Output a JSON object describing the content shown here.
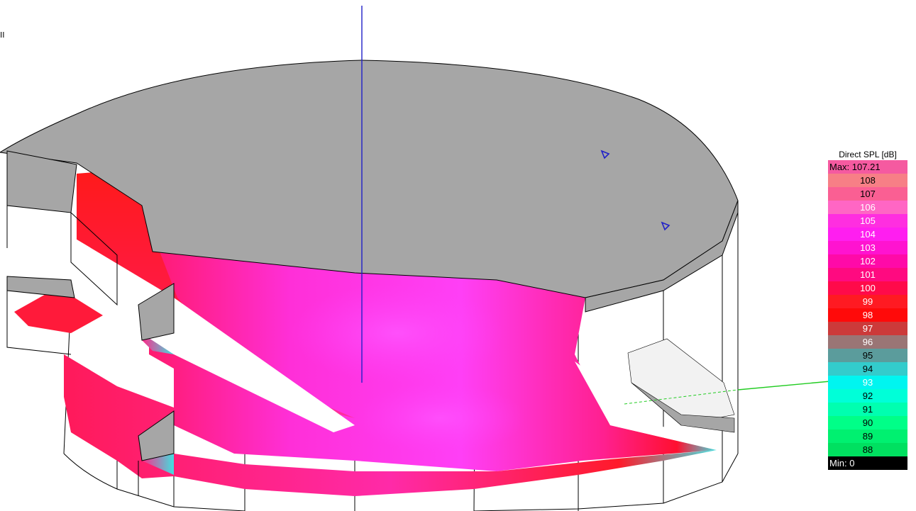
{
  "viewport": {
    "corner_marker": "II"
  },
  "scene": {
    "object": "cylindrical venue model with stepped balcony tiers",
    "axes": {
      "vertical_axis_color": "#2020c8",
      "horizontal_axis_color": "#22cc22"
    },
    "surface_colors": {
      "roof": "#a6a6a6",
      "wall_outline": "#000000",
      "audience_area_peak": "#ff2ff0",
      "audience_area_mid": "#ff1f7a",
      "audience_area_low": "#2fd6d6"
    },
    "source_icons": [
      "speaker-icon",
      "speaker-icon"
    ]
  },
  "legend": {
    "title": "Direct SPL [dB]",
    "max_label": "Max:",
    "max_value": "107.21",
    "min_label": "Min:",
    "min_value": "0",
    "levels": [
      {
        "label": "108",
        "color": "#f77f86",
        "text": "#000000"
      },
      {
        "label": "107",
        "color": "#fa5f93",
        "text": "#000000"
      },
      {
        "label": "106",
        "color": "#ff66c4",
        "text": "#ffffff"
      },
      {
        "label": "105",
        "color": "#ff2ee0",
        "text": "#ffffff"
      },
      {
        "label": "104",
        "color": "#ff1ef0",
        "text": "#ffffff"
      },
      {
        "label": "103",
        "color": "#ff13d0",
        "text": "#ffffff"
      },
      {
        "label": "102",
        "color": "#ff0aa8",
        "text": "#ffffff"
      },
      {
        "label": "101",
        "color": "#ff0a80",
        "text": "#ffffff"
      },
      {
        "label": "100",
        "color": "#ff0a4a",
        "text": "#ffffff"
      },
      {
        "label": "99",
        "color": "#ff1a22",
        "text": "#ffffff"
      },
      {
        "label": "98",
        "color": "#ff0a0a",
        "text": "#ffffff"
      },
      {
        "label": "97",
        "color": "#cc3a3a",
        "text": "#ffffff"
      },
      {
        "label": "96",
        "color": "#9a7575",
        "text": "#ffffff"
      },
      {
        "label": "95",
        "color": "#5b9c9c",
        "text": "#000000"
      },
      {
        "label": "94",
        "color": "#33cccc",
        "text": "#000000"
      },
      {
        "label": "93",
        "color": "#00f5f0",
        "text": "#ffffff"
      },
      {
        "label": "92",
        "color": "#00ffd8",
        "text": "#000000"
      },
      {
        "label": "91",
        "color": "#00ffb0",
        "text": "#000000"
      },
      {
        "label": "90",
        "color": "#00ff88",
        "text": "#000000"
      },
      {
        "label": "89",
        "color": "#00f070",
        "text": "#000000"
      },
      {
        "label": "88",
        "color": "#00e060",
        "text": "#000000"
      }
    ],
    "max_color": "#f55aa0",
    "min_color": "#000000"
  }
}
